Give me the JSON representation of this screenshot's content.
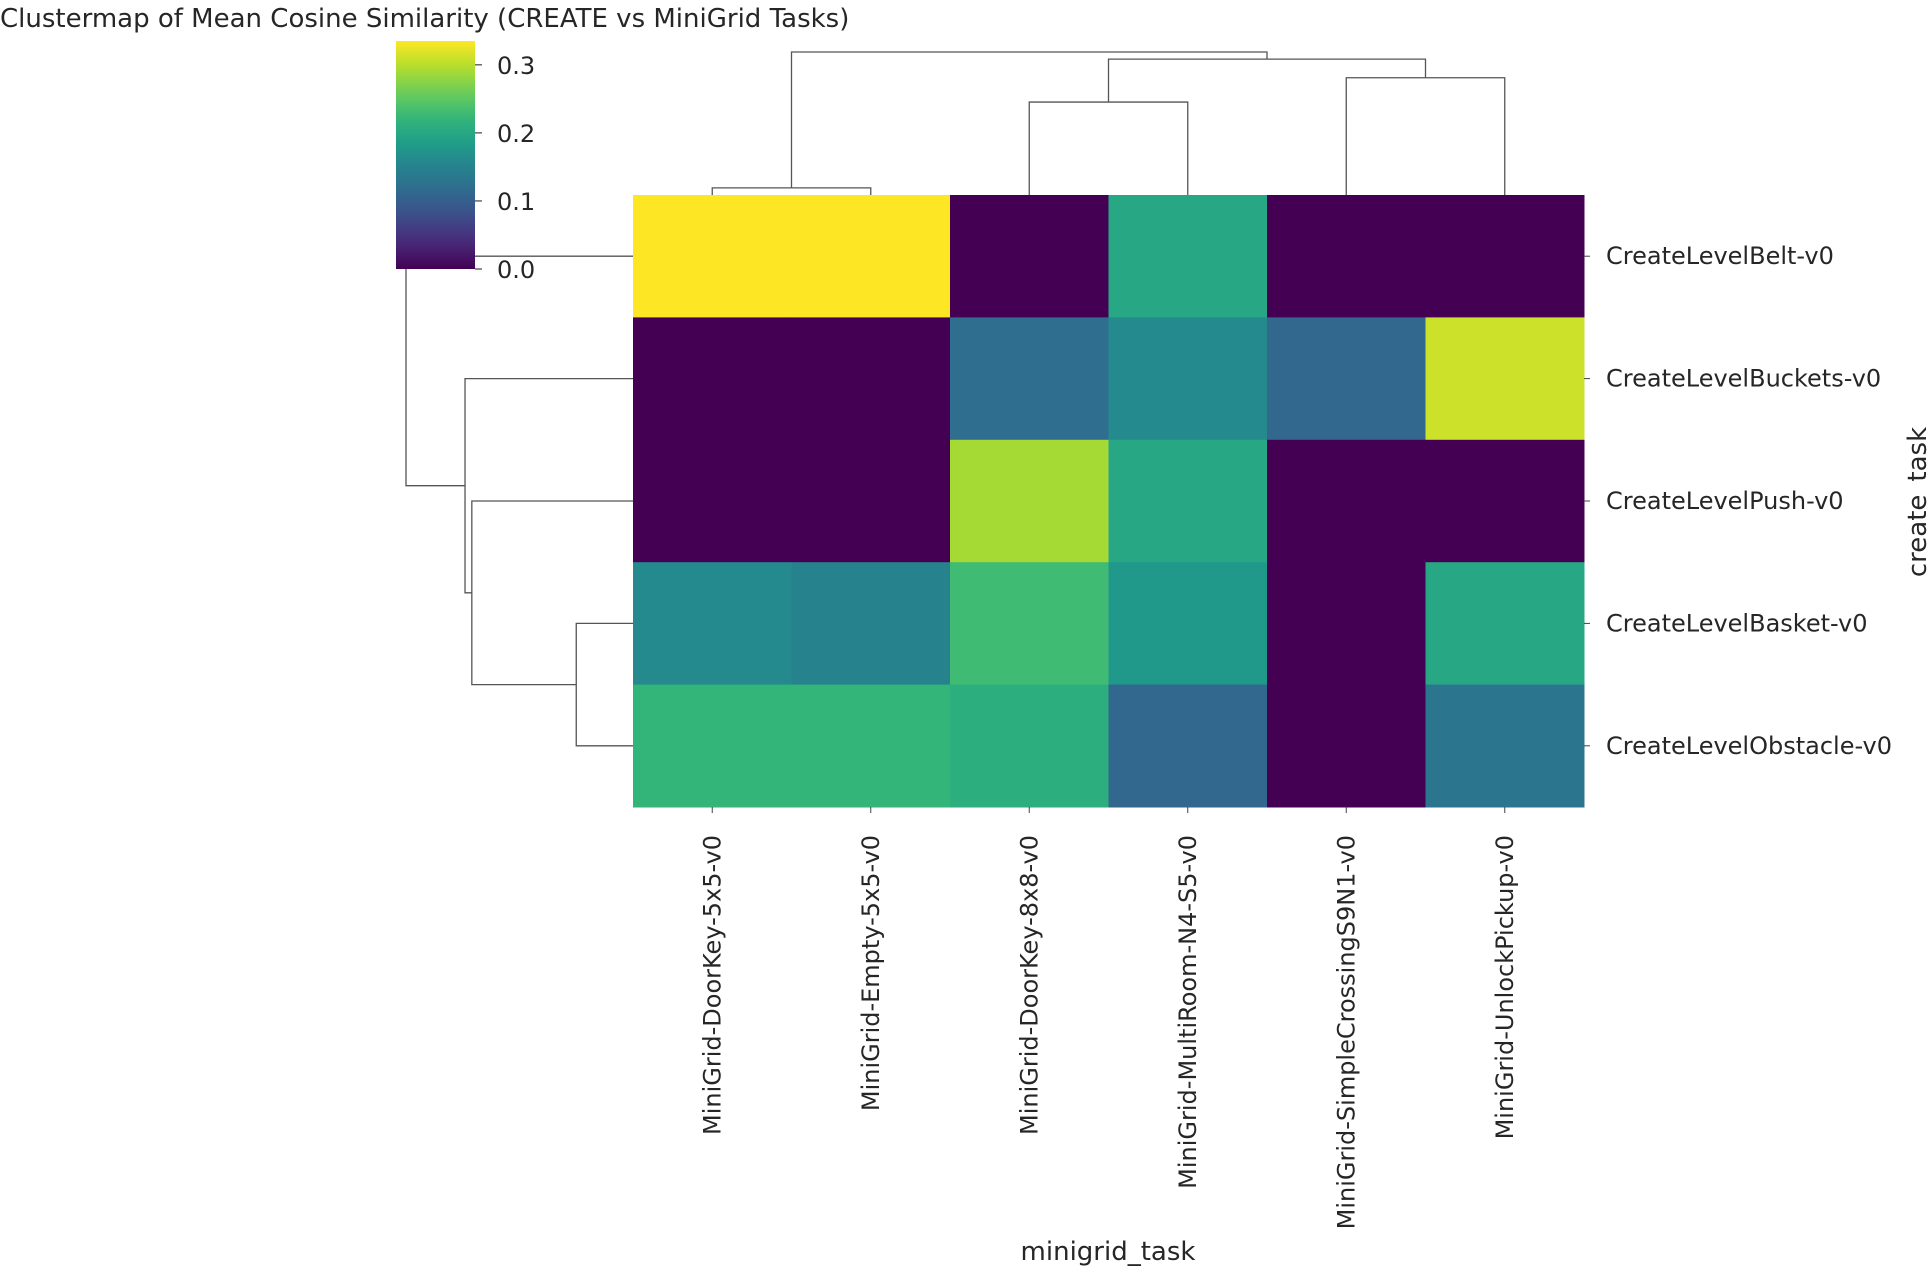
{
  "chart_data": {
    "type": "heatmap",
    "title": "Clustermap of Mean Cosine Similarity (CREATE vs MiniGrid Tasks)",
    "xlabel": "minigrid_task",
    "ylabel": "create_task",
    "columns": [
      "MiniGrid-DoorKey-5x5-v0",
      "MiniGrid-Empty-5x5-v0",
      "MiniGrid-DoorKey-8x8-v0",
      "MiniGrid-MultiRoom-N4-S5-v0",
      "MiniGrid-SimpleCrossingS9N1-v0",
      "MiniGrid-UnlockPickup-v0"
    ],
    "rows": [
      "CreateLevelBelt-v0",
      "CreateLevelBuckets-v0",
      "CreateLevelPush-v0",
      "CreateLevelBasket-v0",
      "CreateLevelObstacle-v0"
    ],
    "values": [
      [
        0.335,
        0.335,
        0.0,
        0.2,
        0.0,
        0.0
      ],
      [
        0.0,
        0.0,
        0.12,
        0.16,
        0.11,
        0.31
      ],
      [
        0.0,
        0.0,
        0.29,
        0.2,
        0.0,
        0.0
      ],
      [
        0.16,
        0.15,
        0.23,
        0.18,
        0.0,
        0.2
      ],
      [
        0.22,
        0.22,
        0.21,
        0.11,
        0.0,
        0.13
      ]
    ],
    "colorbar": {
      "colormap": "viridis",
      "range": [
        0.0,
        0.335
      ],
      "ticks": [
        {
          "value": 0.0,
          "label": "0.0"
        },
        {
          "value": 0.1,
          "label": "0.1"
        },
        {
          "value": 0.2,
          "label": "0.2"
        },
        {
          "value": 0.3,
          "label": "0.3"
        }
      ]
    },
    "col_dendrogram": [
      {
        "left": 0,
        "right": 1,
        "height": 0.05
      },
      {
        "left": 2,
        "right": 3,
        "height": 0.65
      },
      {
        "left": 4,
        "right": 5,
        "height": 0.82
      },
      {
        "left": "n2",
        "right": "n3",
        "height": 0.95
      },
      {
        "left": "n1",
        "right": "n4",
        "height": 1.0
      }
    ],
    "row_dendrogram": [
      {
        "left": 3,
        "right": 4,
        "height": 0.25
      },
      {
        "left": 2,
        "right": "n1",
        "height": 0.71
      },
      {
        "left": 1,
        "right": "n2",
        "height": 0.74
      },
      {
        "left": 0,
        "right": "n3",
        "height": 1.0
      }
    ],
    "grid": false
  }
}
